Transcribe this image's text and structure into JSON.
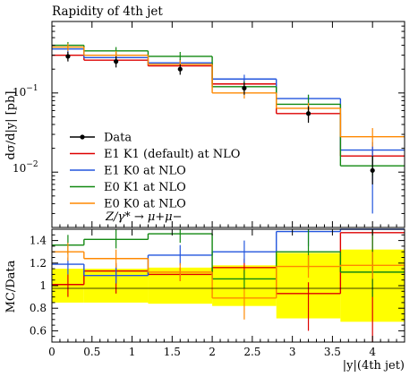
{
  "chart_data": [
    {
      "type": "step",
      "panel": "main",
      "title": "Rapidity of 4th jet",
      "ylabel": "dσ/d|y| [pb]",
      "yscale": "log",
      "ylim": [
        0.002,
        0.8
      ],
      "xlim": [
        0,
        4.4
      ],
      "yticklabels": [
        "10^-1",
        "10^-2"
      ],
      "annotation": "Z/γ* → μ+μ−",
      "legend_position": "lower-left",
      "bin_edges": [
        0,
        0.4,
        1.2,
        2.0,
        2.8,
        3.6,
        4.4
      ],
      "data": {
        "name": "Data",
        "x": [
          0.2,
          0.8,
          1.6,
          2.4,
          3.2,
          4.0
        ],
        "y": [
          0.29,
          0.25,
          0.2,
          0.115,
          0.055,
          0.0105
        ],
        "yerr_up": [
          0.33,
          0.29,
          0.23,
          0.135,
          0.068,
          0.016
        ],
        "yerr_dn": [
          0.25,
          0.21,
          0.17,
          0.095,
          0.042,
          0.007
        ]
      },
      "series": [
        {
          "name": "E1 K1 (default) at NLO",
          "color": "#dd0000",
          "values": [
            0.3,
            0.26,
            0.22,
            0.13,
            0.055,
            0.016
          ],
          "err_up": [
            0.34,
            0.3,
            0.26,
            0.15,
            0.068,
            0.021
          ],
          "err_dn": [
            0.26,
            0.23,
            0.19,
            0.11,
            0.046,
            0.013
          ]
        },
        {
          "name": "E1 K0 at NLO",
          "color": "#2255dd",
          "values": [
            0.36,
            0.28,
            0.24,
            0.15,
            0.085,
            0.019
          ],
          "err_up": [
            0.4,
            0.32,
            0.27,
            0.17,
            0.095,
            0.024
          ],
          "err_dn": [
            0.32,
            0.25,
            0.21,
            0.13,
            0.072,
            0.003
          ]
        },
        {
          "name": "E0 K1 at NLO",
          "color": "#118811",
          "values": [
            0.4,
            0.34,
            0.29,
            0.12,
            0.072,
            0.012
          ],
          "err_up": [
            0.44,
            0.38,
            0.33,
            0.14,
            0.095,
            0.016
          ],
          "err_dn": [
            0.36,
            0.3,
            0.26,
            0.1,
            0.06,
            0.009
          ]
        },
        {
          "name": "E0 K0 at NLO",
          "color": "#ff8800",
          "values": [
            0.38,
            0.3,
            0.23,
            0.1,
            0.064,
            0.028
          ],
          "err_up": [
            0.42,
            0.34,
            0.26,
            0.12,
            0.075,
            0.036
          ],
          "err_dn": [
            0.34,
            0.27,
            0.2,
            0.085,
            0.055,
            0.021
          ]
        }
      ]
    },
    {
      "type": "step",
      "panel": "ratio",
      "ylabel": "MC/Data",
      "xlabel": "|y|(4th jet)",
      "ylim": [
        0.5,
        1.5
      ],
      "yticks": [
        0.6,
        0.8,
        1.0,
        1.2,
        1.4
      ],
      "yticklabels": [
        "0.6",
        "0.8",
        "1",
        "1.2",
        "1.4"
      ],
      "xticks": [
        0,
        0.5,
        1,
        1.5,
        2,
        2.5,
        3,
        3.5,
        4
      ],
      "xticklabels": [
        "0",
        "0.5",
        "1",
        "1.5",
        "2",
        "2.5",
        "3",
        "3.5",
        "4"
      ],
      "data_band": {
        "color": "#ffff00",
        "lo": [
          0.85,
          0.85,
          0.84,
          0.82,
          0.71,
          0.68
        ],
        "hi": [
          1.15,
          1.15,
          1.16,
          1.18,
          1.29,
          1.32
        ]
      },
      "series": [
        {
          "name": "E1 K1 (default) at NLO",
          "color": "#dd0000",
          "values": [
            1.01,
            1.13,
            1.1,
            1.16,
            0.93,
            1.47
          ],
          "err_up": [
            1.1,
            1.2,
            1.16,
            1.24,
            1.03,
            1.5
          ],
          "err_dn": [
            0.9,
            0.93,
            1.04,
            1.06,
            0.6,
            0.5
          ]
        },
        {
          "name": "E1 K0 at NLO",
          "color": "#2255dd",
          "values": [
            1.19,
            1.09,
            1.27,
            1.3,
            1.48,
            1.5
          ],
          "err_up": [
            1.25,
            1.18,
            1.36,
            1.4,
            1.5,
            1.5
          ],
          "err_dn": [
            1.1,
            1.02,
            1.18,
            1.2,
            1.35,
            1.5
          ]
        },
        {
          "name": "E0 K1 at NLO",
          "color": "#118811",
          "values": [
            1.36,
            1.41,
            1.46,
            1.06,
            1.3,
            1.12
          ],
          "err_up": [
            1.45,
            1.5,
            1.5,
            1.14,
            1.5,
            1.5
          ],
          "err_dn": [
            1.28,
            1.33,
            1.38,
            0.98,
            1.15,
            0.9
          ]
        },
        {
          "name": "E0 K0 at NLO",
          "color": "#ff8800",
          "values": [
            1.3,
            1.24,
            1.12,
            0.89,
            1.17,
            1.18
          ],
          "err_up": [
            1.38,
            1.32,
            1.2,
            0.98,
            1.27,
            1.3
          ],
          "err_dn": [
            1.22,
            1.16,
            1.04,
            0.7,
            1.07,
            1.06
          ]
        }
      ]
    }
  ]
}
